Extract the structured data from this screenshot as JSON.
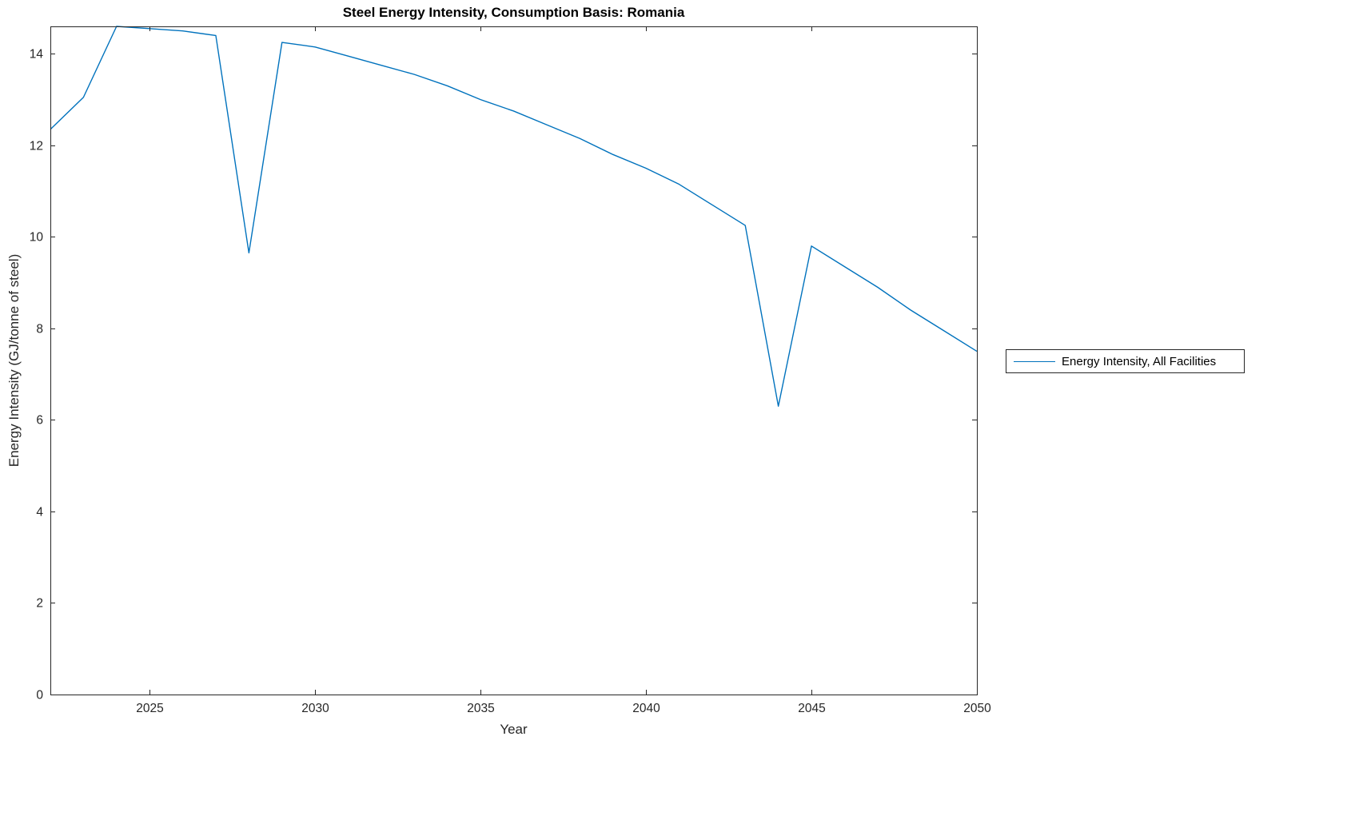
{
  "chart_data": {
    "type": "line",
    "title": "Steel Energy Intensity, Consumption Basis: Romania",
    "xlabel": "Year",
    "ylabel": "Energy Intensity (GJ/tonne of steel)",
    "xlim": [
      2022,
      2050
    ],
    "ylim": [
      0,
      14.6
    ],
    "xticks": [
      2025,
      2030,
      2035,
      2040,
      2045,
      2050
    ],
    "yticks": [
      0,
      2,
      4,
      6,
      8,
      10,
      12,
      14
    ],
    "grid": false,
    "legend": {
      "position": "right-outside",
      "entries": [
        "Energy Intensity, All Facilities"
      ]
    },
    "line_color": "#0072BD",
    "axis_color": "#262626",
    "x": [
      2022,
      2023,
      2024,
      2025,
      2026,
      2027,
      2028,
      2029,
      2030,
      2031,
      2032,
      2033,
      2034,
      2035,
      2036,
      2037,
      2038,
      2039,
      2040,
      2041,
      2042,
      2043,
      2044,
      2045,
      2046,
      2047,
      2048,
      2049,
      2050
    ],
    "series": [
      {
        "name": "Energy Intensity, All Facilities",
        "values": [
          12.35,
          13.05,
          14.6,
          14.55,
          14.5,
          14.4,
          9.65,
          14.25,
          14.15,
          13.95,
          13.75,
          13.55,
          13.3,
          13.0,
          12.75,
          12.45,
          12.15,
          11.8,
          11.5,
          11.15,
          10.7,
          10.25,
          6.3,
          9.8,
          9.35,
          8.9,
          8.4,
          7.95,
          7.5
        ]
      }
    ]
  }
}
